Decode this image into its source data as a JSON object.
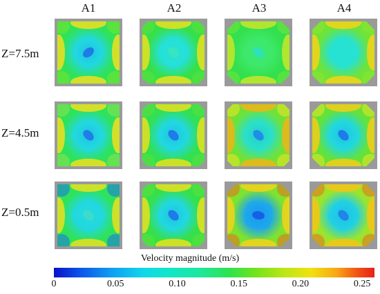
{
  "columns": [
    "A1",
    "A2",
    "A3",
    "A4"
  ],
  "rows": [
    "Z=7.5m",
    "Z=4.5m",
    "Z=0.5m"
  ],
  "colorbar": {
    "title": "Velocity magnitude (m/s)",
    "ticks": [
      "0",
      "0.05",
      "0.10",
      "0.15",
      "0.20",
      "0.25"
    ],
    "tick_values": [
      0,
      0.05,
      0.1,
      0.15,
      0.2,
      0.25
    ],
    "range": [
      0,
      0.26
    ]
  },
  "colors": {
    "low": "#0a12c8",
    "cyan": "#14e0e6",
    "green": "#30e048",
    "yellow": "#f0e210",
    "red": "#e5211b",
    "wall": "#9a9a9a"
  },
  "panels": [
    {
      "row": 0,
      "col": 0,
      "corner": "square",
      "rotation": -40,
      "inner": "#22d8e0",
      "core": "#1e7be8",
      "mid": "#2fe25c",
      "edge": "#f0df20",
      "accent": "#7ae522"
    },
    {
      "row": 0,
      "col": 1,
      "corner": "chamfer",
      "rotation": 45,
      "inner": "#25e0d8",
      "core": "#37e6c0",
      "mid": "#36e04a",
      "edge": "#e8e020",
      "accent": "#5fe03a"
    },
    {
      "row": 0,
      "col": 2,
      "corner": "chamfer-large",
      "rotation": 45,
      "inner": "#3ee86a",
      "core": "#2de2b8",
      "mid": "#33e04e",
      "edge": "#c8e62a",
      "accent": "#72e536"
    },
    {
      "row": 0,
      "col": 3,
      "corner": "chamfer-large",
      "rotation": 45,
      "inner": "#27e2d2",
      "core": "#27e2d2",
      "mid": "#6ee33a",
      "edge": "#f4d41a",
      "accent": "#8fe62c"
    },
    {
      "row": 1,
      "col": 0,
      "corner": "square",
      "rotation": 45,
      "inner": "#22d8e0",
      "core": "#1f7ee8",
      "mid": "#2fe25c",
      "edge": "#f0df20",
      "accent": "#8fe24a"
    },
    {
      "row": 1,
      "col": 1,
      "corner": "chamfer",
      "rotation": 45,
      "inner": "#22d8e0",
      "core": "#1e7be8",
      "mid": "#32e052",
      "edge": "#e6e020",
      "accent": "#5fe03a"
    },
    {
      "row": 1,
      "col": 2,
      "corner": "chamfer",
      "rotation": 45,
      "inner": "#2ae0c8",
      "core": "#1e8ee8",
      "mid": "#6fe23a",
      "edge": "#f0b418",
      "accent": "#f4e41c"
    },
    {
      "row": 1,
      "col": 3,
      "corner": "chamfer-large",
      "rotation": 45,
      "inner": "#22d8e0",
      "core": "#1e7be8",
      "mid": "#64e23a",
      "edge": "#f2cc1a",
      "accent": "#f0e420"
    },
    {
      "row": 2,
      "col": 0,
      "corner": "square",
      "rotation": 45,
      "inner": "#22d8e0",
      "core": "#3cdccc",
      "mid": "#2fe25c",
      "edge": "#e8e020",
      "accent": "#1f6fe6"
    },
    {
      "row": 2,
      "col": 1,
      "corner": "chamfer",
      "rotation": 45,
      "inner": "#22d8e0",
      "core": "#1e7be8",
      "mid": "#36e04a",
      "edge": "#e8e020",
      "accent": "#5fe03a"
    },
    {
      "row": 2,
      "col": 2,
      "corner": "chamfer-large",
      "rotation": 10,
      "inner": "#1ea8ec",
      "core": "#1660e8",
      "mid": "#7ee230",
      "edge": "#f2d21a",
      "accent": "#ef6a1a"
    },
    {
      "row": 2,
      "col": 3,
      "corner": "chamfer-large",
      "rotation": 45,
      "inner": "#22d0e4",
      "core": "#1e86e8",
      "mid": "#9ce42c",
      "edge": "#f4c418",
      "accent": "#f06a1a"
    }
  ]
}
